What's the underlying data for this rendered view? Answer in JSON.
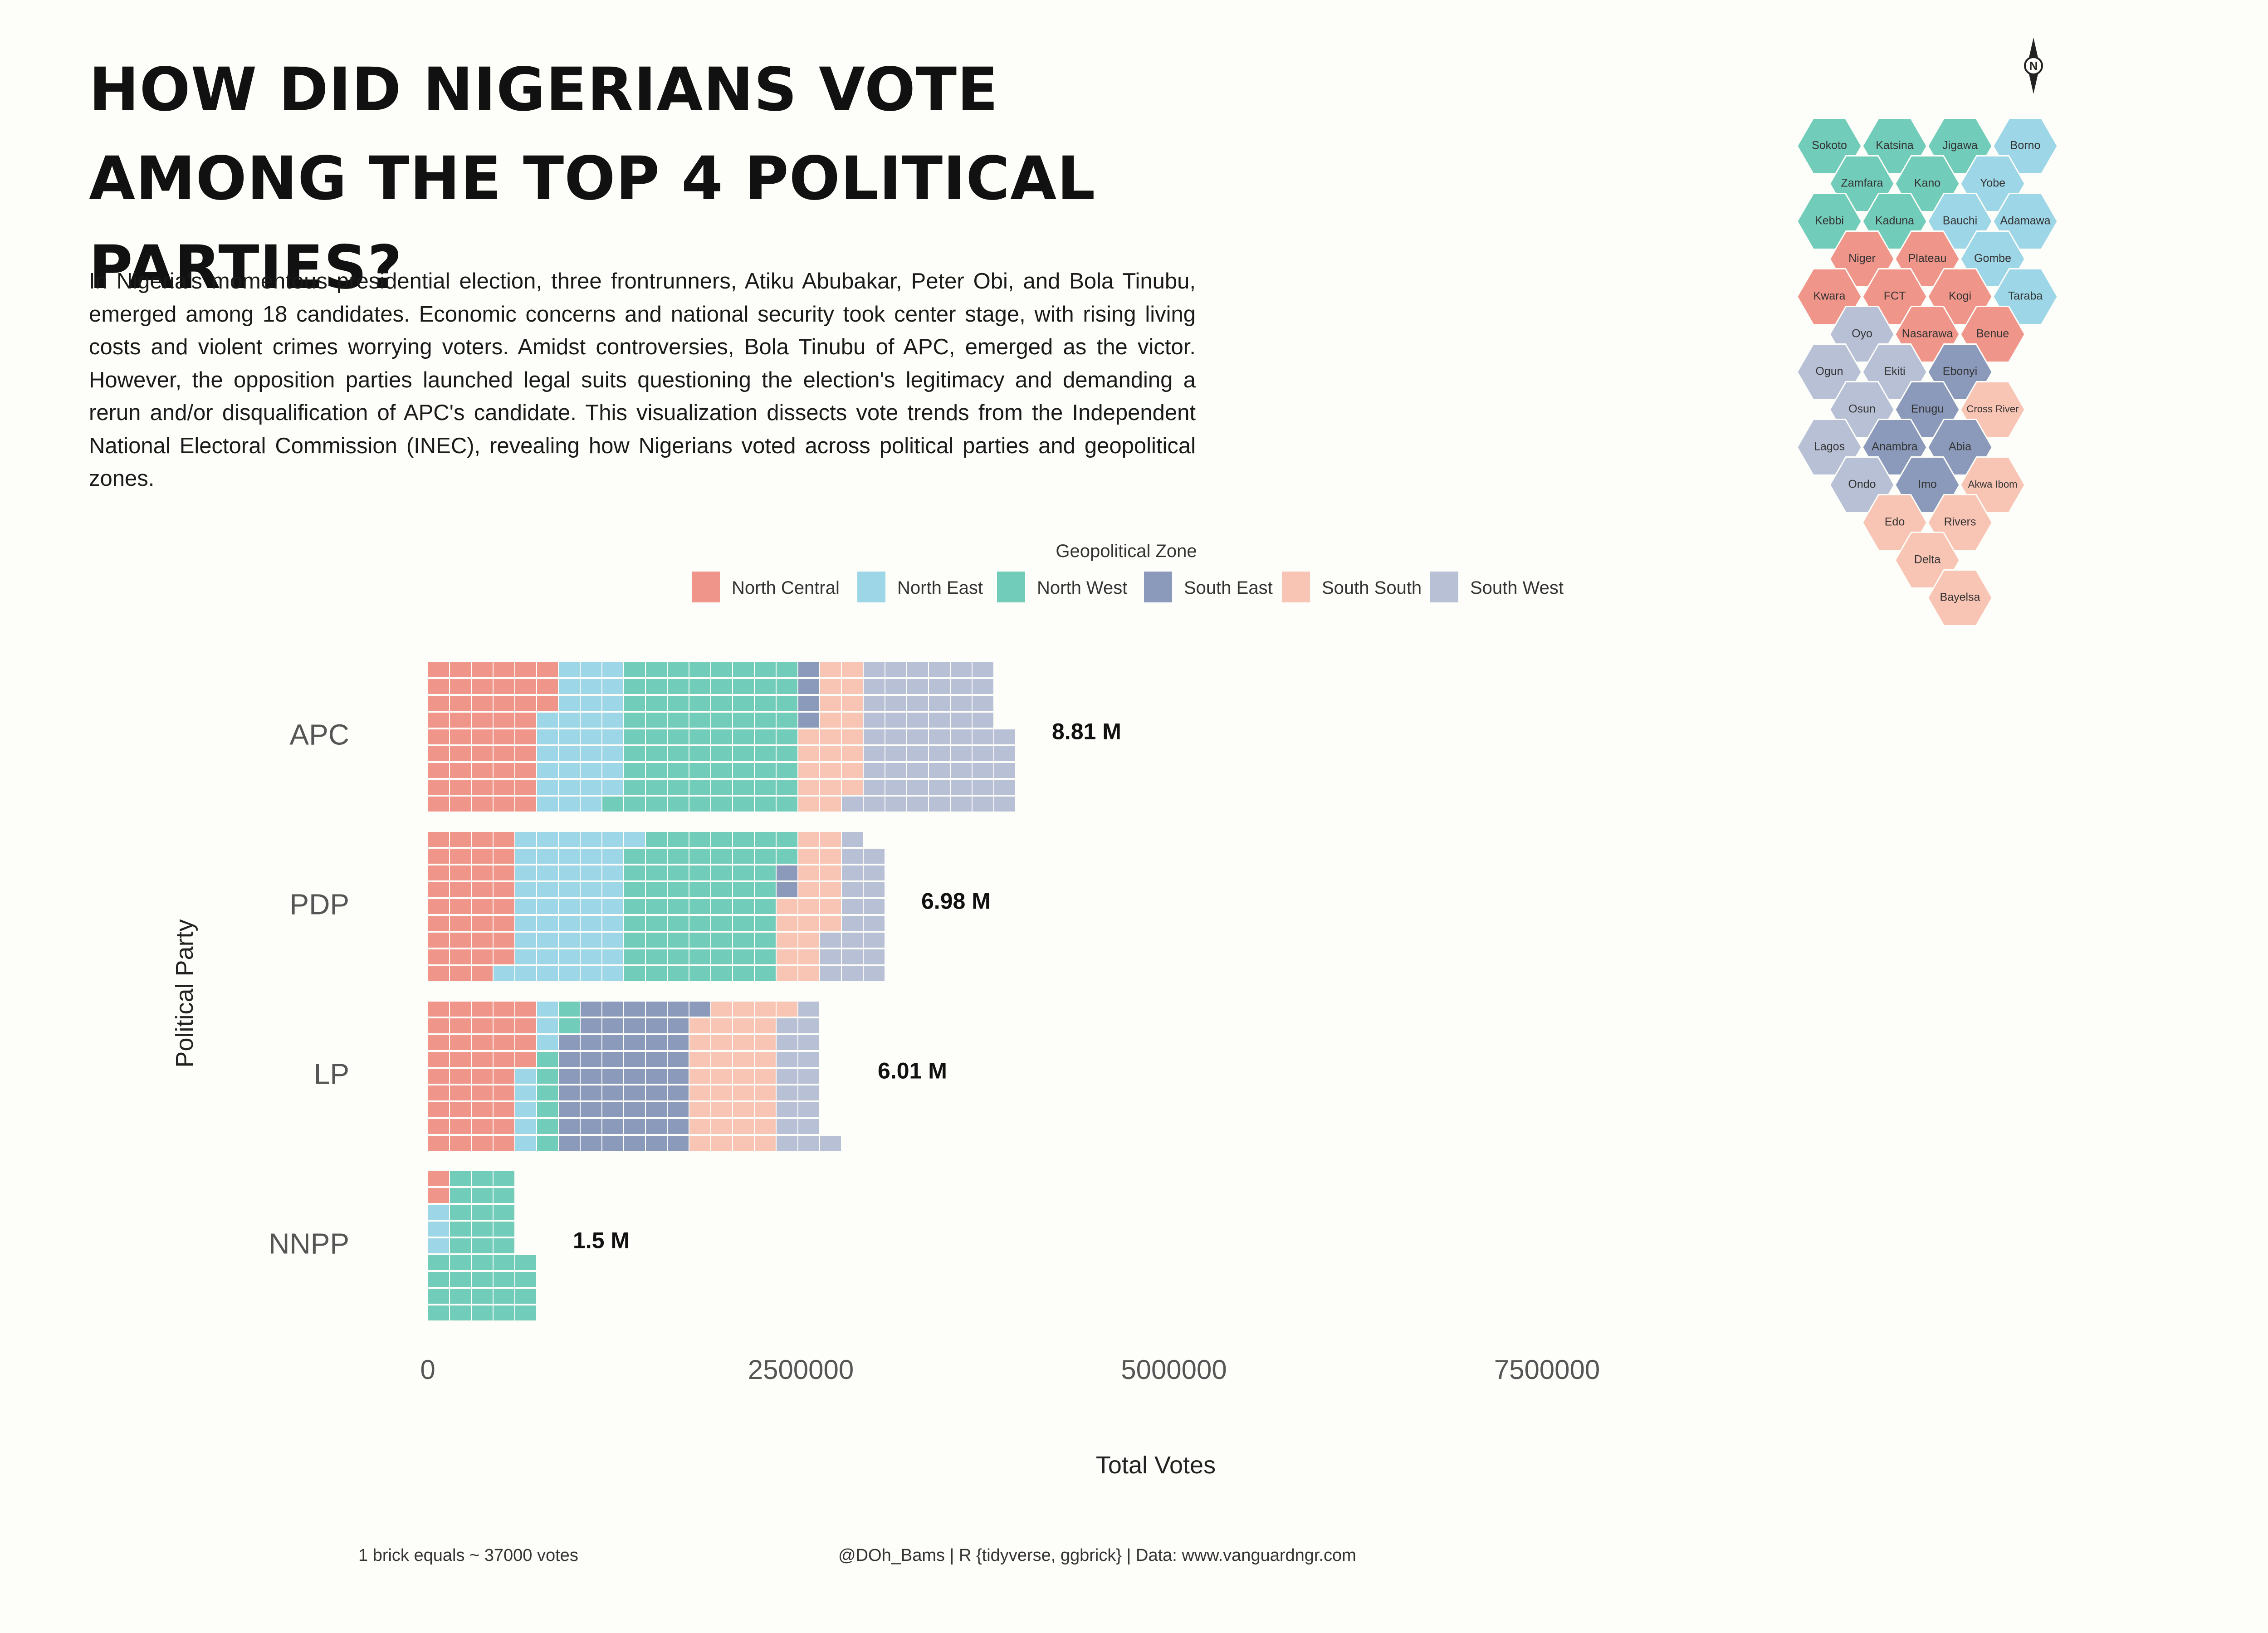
{
  "title": "HOW DID NIGERIANS VOTE AMONG THE TOP 4 POLITICAL PARTIES?",
  "description": "In Nigeria's momentous presidential election, three frontrunners, Atiku Abubakar, Peter Obi, and Bola Tinubu, emerged among 18 candidates. Economic concerns and national security took center stage, with rising living costs and violent crimes worrying voters. Amidst controversies, Bola Tinubu of APC, emerged as the victor. However, the opposition parties launched legal suits questioning the election's legitimacy and demanding a rerun and/or disqualification of APC's candidate. This visualization dissects vote trends from the Independent National Electoral Commission (INEC), revealing how Nigerians voted across political parties and geopolitical zones.",
  "footnote": "1 brick equals ~ 37000 votes",
  "credit": "@DOh_Bams | R {tidyverse, ggbrick} | Data: www.vanguardngr.com",
  "colors": {
    "North Central": "#f0958a",
    "North East": "#9dd6e6",
    "North West": "#72ccba",
    "South East": "#8b9aba",
    "South South": "#f8c4b4",
    "South West": "#b8c0d6"
  },
  "chart_data": {
    "type": "bar",
    "stacked": true,
    "orientation": "horizontal",
    "xlabel": "Total Votes",
    "ylabel": "Political Party",
    "xlim": [
      0,
      9000000
    ],
    "xticks": [
      0,
      2500000,
      5000000,
      7500000
    ],
    "xtick_labels": [
      "0",
      "2500000",
      "5000000",
      "7500000"
    ],
    "legend_title": "Geopolitical Zone",
    "legend_position": "top",
    "categories": [
      "APC",
      "PDP",
      "LP",
      "NNPP"
    ],
    "series": [
      {
        "name": "North Central",
        "values": [
          1760000,
          1300000,
          1480000,
          70000
        ]
      },
      {
        "name": "North East",
        "values": [
          1200000,
          1750000,
          300000,
          110000
        ]
      },
      {
        "name": "North West",
        "values": [
          2700000,
          2350000,
          300000,
          1310000
        ]
      },
      {
        "name": "South East",
        "values": [
          140000,
          80000,
          1950000,
          0
        ]
      },
      {
        "name": "South South",
        "values": [
          800000,
          750000,
          1320000,
          0
        ]
      },
      {
        "name": "South West",
        "values": [
          2210000,
          750000,
          660000,
          10000
        ]
      }
    ],
    "totals": [
      8810000,
      6980000,
      6010000,
      1500000
    ],
    "total_labels": [
      "8.81 M",
      "6.98 M",
      "6.01 M",
      "1.5 M"
    ],
    "brick_votes": 37000
  },
  "map": {
    "states": [
      {
        "name": "Sokoto",
        "col": 0,
        "row": 0,
        "zone": "North West"
      },
      {
        "name": "Katsina",
        "col": 2,
        "row": 0,
        "zone": "North West"
      },
      {
        "name": "Jigawa",
        "col": 4,
        "row": 0,
        "zone": "North West"
      },
      {
        "name": "Borno",
        "col": 6,
        "row": 0,
        "zone": "North East"
      },
      {
        "name": "Zamfara",
        "col": 1,
        "row": 1,
        "zone": "North West"
      },
      {
        "name": "Kano",
        "col": 3,
        "row": 1,
        "zone": "North West"
      },
      {
        "name": "Yobe",
        "col": 5,
        "row": 1,
        "zone": "North East"
      },
      {
        "name": "Kebbi",
        "col": 0,
        "row": 2,
        "zone": "North West"
      },
      {
        "name": "Kaduna",
        "col": 2,
        "row": 2,
        "zone": "North West"
      },
      {
        "name": "Bauchi",
        "col": 4,
        "row": 2,
        "zone": "North East"
      },
      {
        "name": "Adamawa",
        "col": 6,
        "row": 2,
        "zone": "North East"
      },
      {
        "name": "Niger",
        "col": 1,
        "row": 3,
        "zone": "North Central"
      },
      {
        "name": "Plateau",
        "col": 3,
        "row": 3,
        "zone": "North Central"
      },
      {
        "name": "Gombe",
        "col": 5,
        "row": 3,
        "zone": "North East"
      },
      {
        "name": "Kwara",
        "col": 0,
        "row": 4,
        "zone": "North Central"
      },
      {
        "name": "FCT",
        "col": 2,
        "row": 4,
        "zone": "North Central"
      },
      {
        "name": "Kogi",
        "col": 4,
        "row": 4,
        "zone": "North Central"
      },
      {
        "name": "Taraba",
        "col": 6,
        "row": 4,
        "zone": "North East"
      },
      {
        "name": "Oyo",
        "col": 1,
        "row": 5,
        "zone": "South West"
      },
      {
        "name": "Nasarawa",
        "col": 3,
        "row": 5,
        "zone": "North Central"
      },
      {
        "name": "Benue",
        "col": 5,
        "row": 5,
        "zone": "North Central"
      },
      {
        "name": "Ogun",
        "col": 0,
        "row": 6,
        "zone": "South West"
      },
      {
        "name": "Ekiti",
        "col": 2,
        "row": 6,
        "zone": "South West"
      },
      {
        "name": "Ebonyi",
        "col": 4,
        "row": 6,
        "zone": "South East"
      },
      {
        "name": "Osun",
        "col": 1,
        "row": 7,
        "zone": "South West"
      },
      {
        "name": "Enugu",
        "col": 3,
        "row": 7,
        "zone": "South East"
      },
      {
        "name": "Cross River",
        "col": 5,
        "row": 7,
        "zone": "South South"
      },
      {
        "name": "Lagos",
        "col": 0,
        "row": 8,
        "zone": "South West"
      },
      {
        "name": "Anambra",
        "col": 2,
        "row": 8,
        "zone": "South East"
      },
      {
        "name": "Abia",
        "col": 4,
        "row": 8,
        "zone": "South East"
      },
      {
        "name": "Ondo",
        "col": 1,
        "row": 9,
        "zone": "South West"
      },
      {
        "name": "Imo",
        "col": 3,
        "row": 9,
        "zone": "South East"
      },
      {
        "name": "Akwa Ibom",
        "col": 5,
        "row": 9,
        "zone": "South South"
      },
      {
        "name": "Edo",
        "col": 2,
        "row": 10,
        "zone": "South South"
      },
      {
        "name": "Rivers",
        "col": 4,
        "row": 10,
        "zone": "South South"
      },
      {
        "name": "Delta",
        "col": 3,
        "row": 11,
        "zone": "South South"
      },
      {
        "name": "Bayelsa",
        "col": 4,
        "row": 12,
        "zone": "South South"
      }
    ],
    "compass_label": "N",
    "compass_icon": "north-arrow-icon"
  }
}
